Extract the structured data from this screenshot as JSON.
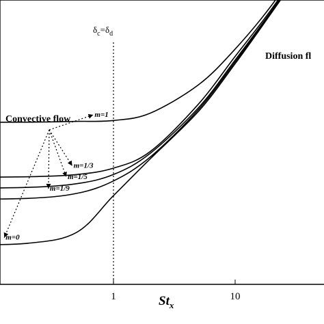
{
  "chart_data": {
    "type": "line",
    "xscale": "log",
    "xlim": [
      0.05,
      100
    ],
    "xticks": [
      {
        "value": 1,
        "label": "1"
      },
      {
        "value": 10,
        "label": "10"
      }
    ],
    "xlabel": "St",
    "xlabel_sub": "x",
    "vline": {
      "x": 1,
      "label_main": "δ",
      "label_sub1": "c",
      "label_eq": "=",
      "label_mid": "δ",
      "label_sub2": "d"
    },
    "annotations": {
      "convective": "Convective flow",
      "diffusion": "Diffusion fl"
    },
    "series": [
      {
        "name": "m=1",
        "x": [
          0.05,
          0.2,
          0.5,
          1,
          2,
          5,
          10,
          20,
          50,
          100
        ],
        "y": [
          0.78,
          0.781,
          0.785,
          0.79,
          0.83,
          0.985,
          1.18,
          1.42,
          1.8,
          2.1
        ]
      },
      {
        "name": "m=1/3",
        "x": [
          0.05,
          0.2,
          0.5,
          1,
          2,
          5,
          10,
          20,
          50,
          100
        ],
        "y": [
          0.48,
          0.483,
          0.495,
          0.53,
          0.62,
          0.88,
          1.14,
          1.4,
          1.78,
          2.08
        ]
      },
      {
        "name": "m=1/5",
        "x": [
          0.05,
          0.2,
          0.5,
          1,
          2,
          5,
          10,
          20,
          50,
          100
        ],
        "y": [
          0.42,
          0.425,
          0.445,
          0.495,
          0.61,
          0.86,
          1.12,
          1.39,
          1.77,
          2.07
        ]
      },
      {
        "name": "m=1/9",
        "x": [
          0.05,
          0.2,
          0.5,
          1,
          2,
          5,
          10,
          20,
          50,
          100
        ],
        "y": [
          0.36,
          0.365,
          0.392,
          0.46,
          0.59,
          0.85,
          1.11,
          1.385,
          1.765,
          2.065
        ]
      },
      {
        "name": "m=0",
        "x": [
          0.05,
          0.2,
          0.5,
          1,
          2,
          5,
          10,
          20,
          50,
          100
        ],
        "y": [
          0.11,
          0.12,
          0.18,
          0.38,
          0.58,
          0.84,
          1.1,
          1.38,
          1.76,
          2.06
        ]
      }
    ]
  }
}
